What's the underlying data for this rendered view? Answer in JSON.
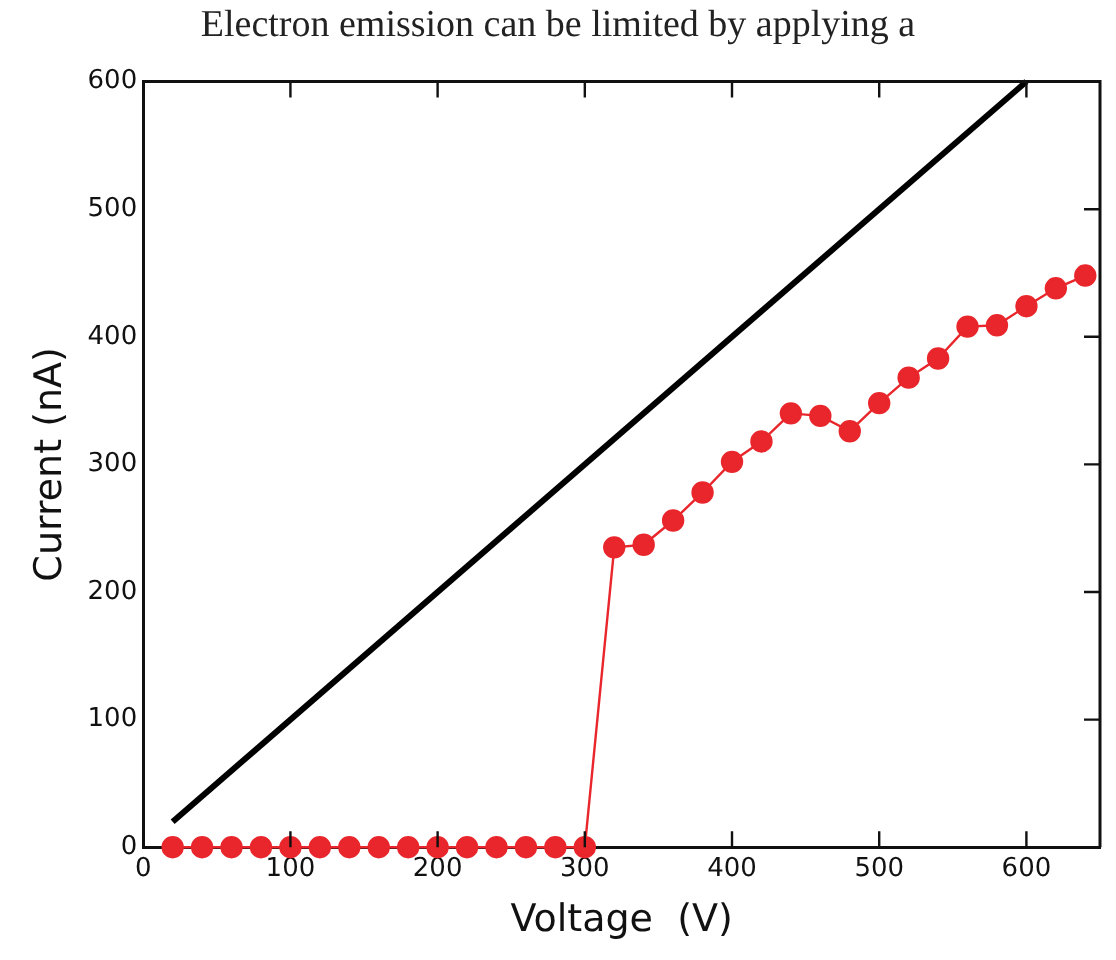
{
  "chart_data": {
    "type": "line",
    "title": "Electron emission can be limited by applying a",
    "xlabel": "Voltage  (V)",
    "ylabel": "Current (nA)",
    "xlim": [
      0,
      650
    ],
    "ylim": [
      0,
      600
    ],
    "xticks": [
      0,
      100,
      200,
      300,
      400,
      500,
      600
    ],
    "yticks": [
      0,
      100,
      200,
      300,
      400,
      500,
      600
    ],
    "grid": false,
    "legend": false,
    "series": [
      {
        "color": "#000000",
        "marker": "none",
        "x": [
          20,
          600
        ],
        "values": [
          20,
          600
        ]
      },
      {
        "color": "#e8262b",
        "marker": "circle",
        "x": [
          20,
          40,
          60,
          80,
          100,
          120,
          140,
          160,
          180,
          200,
          220,
          240,
          260,
          280,
          300,
          320,
          340,
          360,
          380,
          400,
          420,
          440,
          460,
          480,
          500,
          520,
          540,
          560,
          580,
          600,
          620,
          640
        ],
        "values": [
          0,
          0,
          0,
          0,
          0,
          0,
          0,
          0,
          0,
          0,
          0,
          0,
          0,
          0,
          0,
          235,
          237,
          256,
          278,
          302,
          318,
          340,
          338,
          326,
          348,
          368,
          383,
          408,
          409,
          424,
          438,
          448
        ]
      }
    ]
  }
}
